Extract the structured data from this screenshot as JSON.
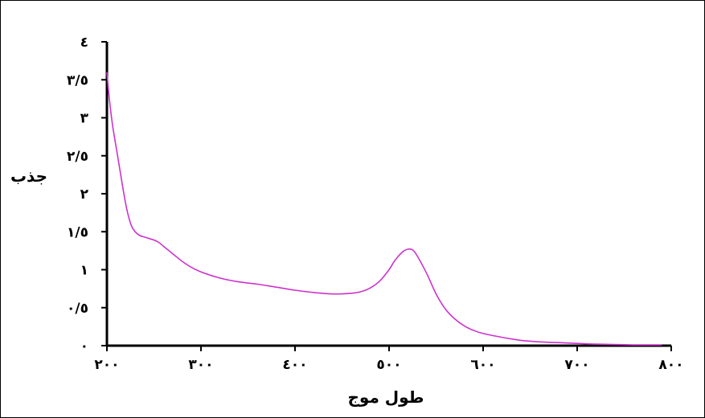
{
  "chart_data": {
    "type": "line",
    "xlabel": "طول موج",
    "ylabel": "جذب",
    "xlim": [
      200,
      800
    ],
    "ylim": [
      0,
      4
    ],
    "x_ticks": [
      {
        "value": 200,
        "label": "۲۰۰"
      },
      {
        "value": 300,
        "label": "۳۰۰"
      },
      {
        "value": 400,
        "label": "٤۰۰"
      },
      {
        "value": 500,
        "label": "٥۰۰"
      },
      {
        "value": 600,
        "label": "٦۰۰"
      },
      {
        "value": 700,
        "label": "۷۰۰"
      },
      {
        "value": 800,
        "label": "۸۰۰"
      }
    ],
    "y_ticks": [
      {
        "value": 0,
        "label": "۰"
      },
      {
        "value": 0.5,
        "label": "۰/٥"
      },
      {
        "value": 1,
        "label": "۱"
      },
      {
        "value": 1.5,
        "label": "۱/٥"
      },
      {
        "value": 2,
        "label": "۲"
      },
      {
        "value": 2.5,
        "label": "۲/٥"
      },
      {
        "value": 3,
        "label": "۳"
      },
      {
        "value": 3.5,
        "label": "۳/٥"
      },
      {
        "value": 4,
        "label": "٤"
      }
    ],
    "grid": false,
    "series": [
      {
        "color": "#cc33cc",
        "x": [
          200,
          203,
          206,
          210,
          214,
          218,
          222,
          226,
          230,
          235,
          240,
          245,
          250,
          255,
          260,
          270,
          280,
          290,
          300,
          320,
          340,
          360,
          380,
          400,
          420,
          440,
          460,
          470,
          480,
          490,
          500,
          505,
          510,
          515,
          520,
          525,
          530,
          540,
          550,
          560,
          570,
          580,
          590,
          600,
          620,
          640,
          660,
          680,
          700,
          720,
          740,
          760,
          780,
          790
        ],
        "y": [
          3.6,
          3.2,
          2.9,
          2.6,
          2.3,
          2.0,
          1.75,
          1.58,
          1.5,
          1.45,
          1.43,
          1.41,
          1.39,
          1.36,
          1.31,
          1.21,
          1.11,
          1.03,
          0.97,
          0.89,
          0.84,
          0.81,
          0.77,
          0.73,
          0.7,
          0.68,
          0.69,
          0.71,
          0.76,
          0.85,
          1.0,
          1.1,
          1.18,
          1.24,
          1.27,
          1.26,
          1.18,
          0.95,
          0.68,
          0.48,
          0.35,
          0.26,
          0.2,
          0.16,
          0.11,
          0.07,
          0.05,
          0.04,
          0.03,
          0.02,
          0.015,
          0.01,
          0.01,
          0.01
        ]
      }
    ]
  }
}
